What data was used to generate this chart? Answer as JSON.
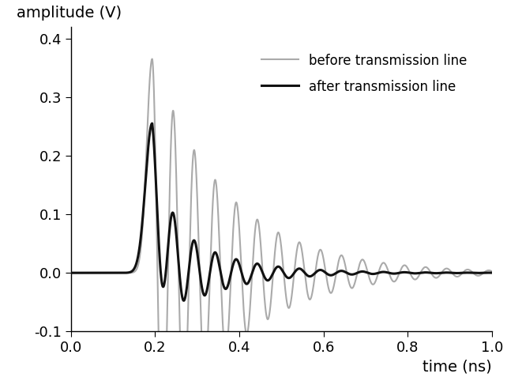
{
  "xlabel": "time (ns)",
  "ylabel": "amplitude (V)",
  "xlim": [
    0.0,
    1.0
  ],
  "ylim": [
    -0.1,
    0.42
  ],
  "xticks": [
    0.0,
    0.2,
    0.4,
    0.6,
    0.8,
    1.0
  ],
  "yticks": [
    -0.1,
    0.0,
    0.1,
    0.2,
    0.3,
    0.4
  ],
  "legend_labels": [
    "before transmission line",
    "after transmission line"
  ],
  "legend_colors": [
    "#aaaaaa",
    "#111111"
  ],
  "legend_lw": [
    1.5,
    2.2
  ],
  "bg_color": "#ffffff",
  "n_points": 5000
}
